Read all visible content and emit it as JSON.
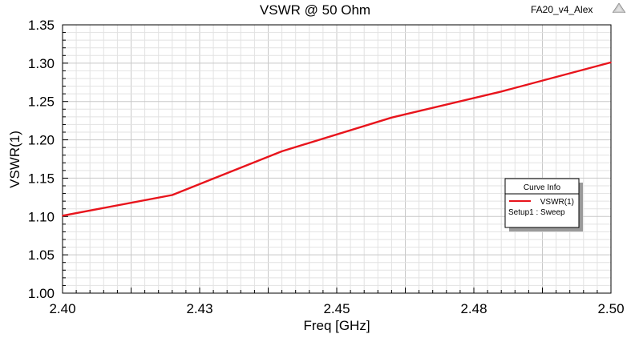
{
  "chart_data": {
    "type": "line",
    "title": "VSWR @ 50 Ohm",
    "design_name": "FA20_v4_Alex",
    "xlabel": "Freq [GHz]",
    "ylabel": "VSWR(1)",
    "xlim": [
      2.4,
      2.5
    ],
    "ylim": [
      1.0,
      1.35
    ],
    "x_tick_labels": [
      "2.40",
      "2.43",
      "2.45",
      "2.48",
      "2.50"
    ],
    "y_tick_labels": [
      "1.00",
      "1.05",
      "1.10",
      "1.15",
      "1.20",
      "1.25",
      "1.30",
      "1.35"
    ],
    "grid": true,
    "legend": {
      "title": "Curve Info",
      "placement": "right",
      "entries": [
        {
          "name": "VSWR(1)",
          "sub": "Setup1 : Sweep",
          "color": "#e8141c"
        }
      ]
    },
    "series": [
      {
        "name": "VSWR(1)",
        "color": "#e8141c",
        "x": [
          2.4,
          2.42,
          2.44,
          2.46,
          2.48,
          2.5
        ],
        "y": [
          1.101,
          1.128,
          1.185,
          1.229,
          1.263,
          1.301
        ]
      }
    ]
  },
  "icons": {
    "corner": "ansys-logo-icon"
  }
}
